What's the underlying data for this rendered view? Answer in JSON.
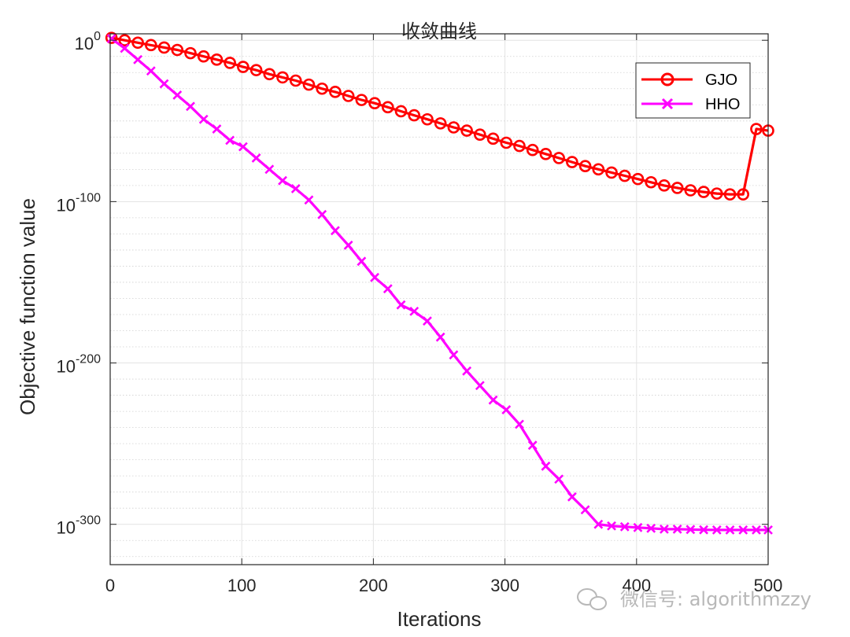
{
  "chart_data": {
    "type": "line",
    "title": "收敛曲线",
    "xlabel": "Iterations",
    "ylabel": "Objective function value",
    "yscale": "log",
    "xlim": [
      0,
      500
    ],
    "ylim_exponent": [
      -325,
      4
    ],
    "xticks": [
      0,
      100,
      200,
      300,
      400,
      500
    ],
    "yticks_exponent": [
      0,
      -100,
      -200,
      -300
    ],
    "ytick_base": "10",
    "grid": true,
    "legend_position": "top-right",
    "series": [
      {
        "name": "GJO",
        "color": "#ff0000",
        "marker": "circle",
        "x": [
          1,
          11,
          21,
          31,
          41,
          51,
          61,
          71,
          81,
          91,
          101,
          111,
          121,
          131,
          141,
          151,
          161,
          171,
          181,
          191,
          201,
          211,
          221,
          231,
          241,
          251,
          261,
          271,
          281,
          291,
          301,
          311,
          321,
          331,
          341,
          351,
          361,
          371,
          381,
          391,
          401,
          411,
          421,
          431,
          441,
          451,
          461,
          471,
          481,
          491,
          500
        ],
        "log10_y": [
          1.5,
          0,
          -1.5,
          -3,
          -4.5,
          -6,
          -8,
          -10,
          -12,
          -14,
          -16.5,
          -18.5,
          -21,
          -23,
          -25,
          -27.5,
          -30,
          -32,
          -34.5,
          -37,
          -39,
          -41.5,
          -44,
          -46.5,
          -49,
          -51.5,
          -54,
          -56,
          -58.5,
          -61,
          -63.5,
          -65.5,
          -68,
          -70.5,
          -73,
          -75.5,
          -78,
          -80,
          -82,
          -84,
          -86,
          -88,
          -90,
          -91.5,
          -93,
          -94,
          -95,
          -95.5,
          -95.5,
          -55.0,
          -56.0
        ]
      },
      {
        "name": "HHO",
        "color": "#ff00ff",
        "marker": "x",
        "x": [
          1,
          11,
          21,
          31,
          41,
          51,
          61,
          71,
          81,
          91,
          101,
          111,
          121,
          131,
          141,
          151,
          161,
          171,
          181,
          191,
          201,
          211,
          221,
          231,
          241,
          251,
          261,
          271,
          281,
          291,
          301,
          311,
          321,
          331,
          341,
          351,
          361,
          371,
          381,
          391,
          401,
          411,
          421,
          431,
          441,
          451,
          461,
          471,
          481,
          491,
          500
        ],
        "log10_y": [
          1,
          -5,
          -12,
          -19,
          -27,
          -34,
          -41,
          -49,
          -55,
          -62,
          -66,
          -73,
          -80,
          -87,
          -92,
          -99,
          -108,
          -118,
          -127,
          -137,
          -147,
          -154,
          -164,
          -168,
          -174,
          -184,
          -195,
          -205,
          -214,
          -223,
          -229,
          -238,
          -251,
          -264,
          -272,
          -283,
          -291,
          -300,
          -301,
          -301.5,
          -302,
          -302.5,
          -303,
          -303,
          -303.2,
          -303.4,
          -303.5,
          -303.5,
          -303.5,
          -303.5,
          -303.5
        ]
      }
    ]
  },
  "watermark": "微信号: algorithmzzy"
}
